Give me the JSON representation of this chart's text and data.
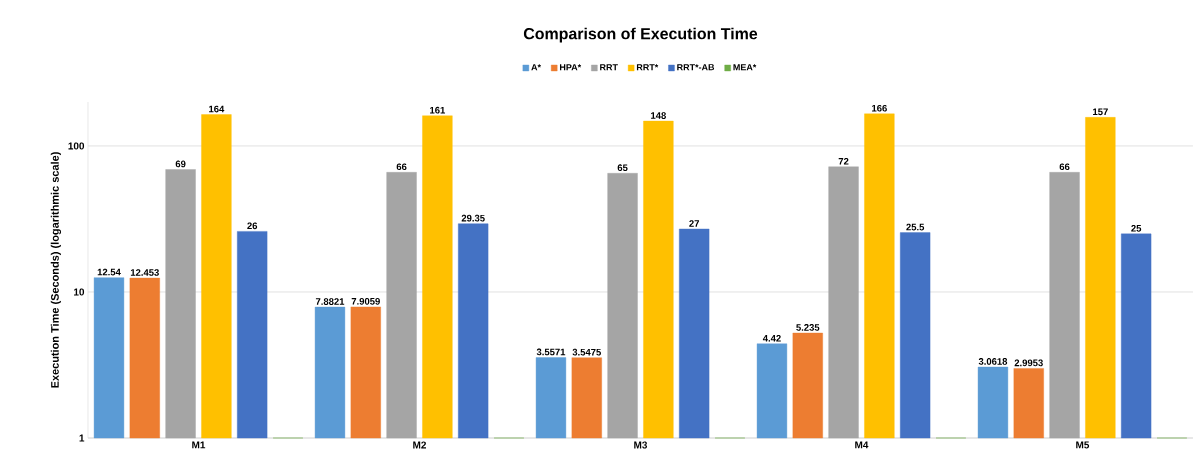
{
  "chart_data": {
    "type": "bar",
    "title": "Comparison of Execution Time",
    "ylabel": "Execution Time (Seconds) (logarithmic  scale)",
    "categories": [
      "M1",
      "M2",
      "M3",
      "M4",
      "M5"
    ],
    "series": [
      {
        "name": "A*",
        "color": "#5b9bd5",
        "values": [
          12.54,
          7.8821,
          3.5571,
          4.42,
          3.0618
        ],
        "value_labels": [
          "12.54",
          "7.8821",
          "3.5571",
          "4.42",
          "3.0618"
        ]
      },
      {
        "name": "HPA*",
        "color": "#ed7d31",
        "values": [
          12.453,
          7.9059,
          3.5475,
          5.235,
          2.9953
        ],
        "value_labels": [
          "12.453",
          "7.9059",
          "3.5475",
          "5.235",
          "2.9953"
        ]
      },
      {
        "name": "RRT",
        "color": "#a5a5a5",
        "values": [
          69,
          66,
          65,
          72,
          66
        ],
        "value_labels": [
          "69",
          "66",
          "65",
          "72",
          "66"
        ]
      },
      {
        "name": "RRT*",
        "color": "#ffc000",
        "values": [
          164,
          161,
          148,
          166,
          157
        ],
        "value_labels": [
          "164",
          "161",
          "148",
          "166",
          "157"
        ]
      },
      {
        "name": "RRT*-AB",
        "color": "#4472c4",
        "values": [
          26,
          29.35,
          27,
          25.5,
          25
        ],
        "value_labels": [
          "26",
          "29.35",
          "27",
          "25.5",
          "25"
        ]
      },
      {
        "name": "MEA*",
        "color": "#70ad47",
        "values": [
          1,
          1,
          1,
          1,
          1
        ]
      }
    ],
    "log": "y",
    "ylim": [
      1,
      200
    ],
    "yticks": [
      1,
      10,
      100
    ],
    "grid": "y",
    "legend": "top"
  }
}
